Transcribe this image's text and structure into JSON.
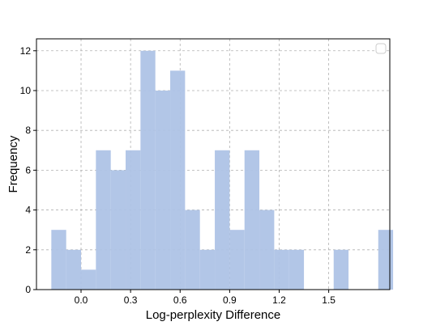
{
  "chart_data": {
    "type": "bar",
    "xlabel": "Log-perplexity Difference",
    "ylabel": "Frequency",
    "ylim": [
      0,
      12.6
    ],
    "xlim": [
      -0.27,
      1.87
    ],
    "grid": true,
    "legend": "top-right (empty)",
    "bar_color": "#aec3e6",
    "x_ticks": [
      {
        "value": 0.0,
        "label": "0.0"
      },
      {
        "value": 0.3,
        "label": "0.3"
      },
      {
        "value": 0.6,
        "label": "0.6"
      },
      {
        "value": 0.9,
        "label": "0.9"
      },
      {
        "value": 1.2,
        "label": "1.2"
      },
      {
        "value": 1.5,
        "label": "1.5"
      }
    ],
    "y_ticks": [
      {
        "value": 0,
        "label": "0"
      },
      {
        "value": 2,
        "label": "2"
      },
      {
        "value": 4,
        "label": "4"
      },
      {
        "value": 6,
        "label": "6"
      },
      {
        "value": 8,
        "label": "8"
      },
      {
        "value": 10,
        "label": "10"
      },
      {
        "value": 12,
        "label": "12"
      }
    ],
    "bin_start": -0.18,
    "bin_width": 0.09,
    "counts": [
      3,
      2,
      1,
      7,
      6,
      7,
      12,
      10,
      11,
      4,
      2,
      7,
      3,
      7,
      4,
      2,
      2,
      0,
      0,
      2,
      0,
      0,
      3
    ]
  }
}
